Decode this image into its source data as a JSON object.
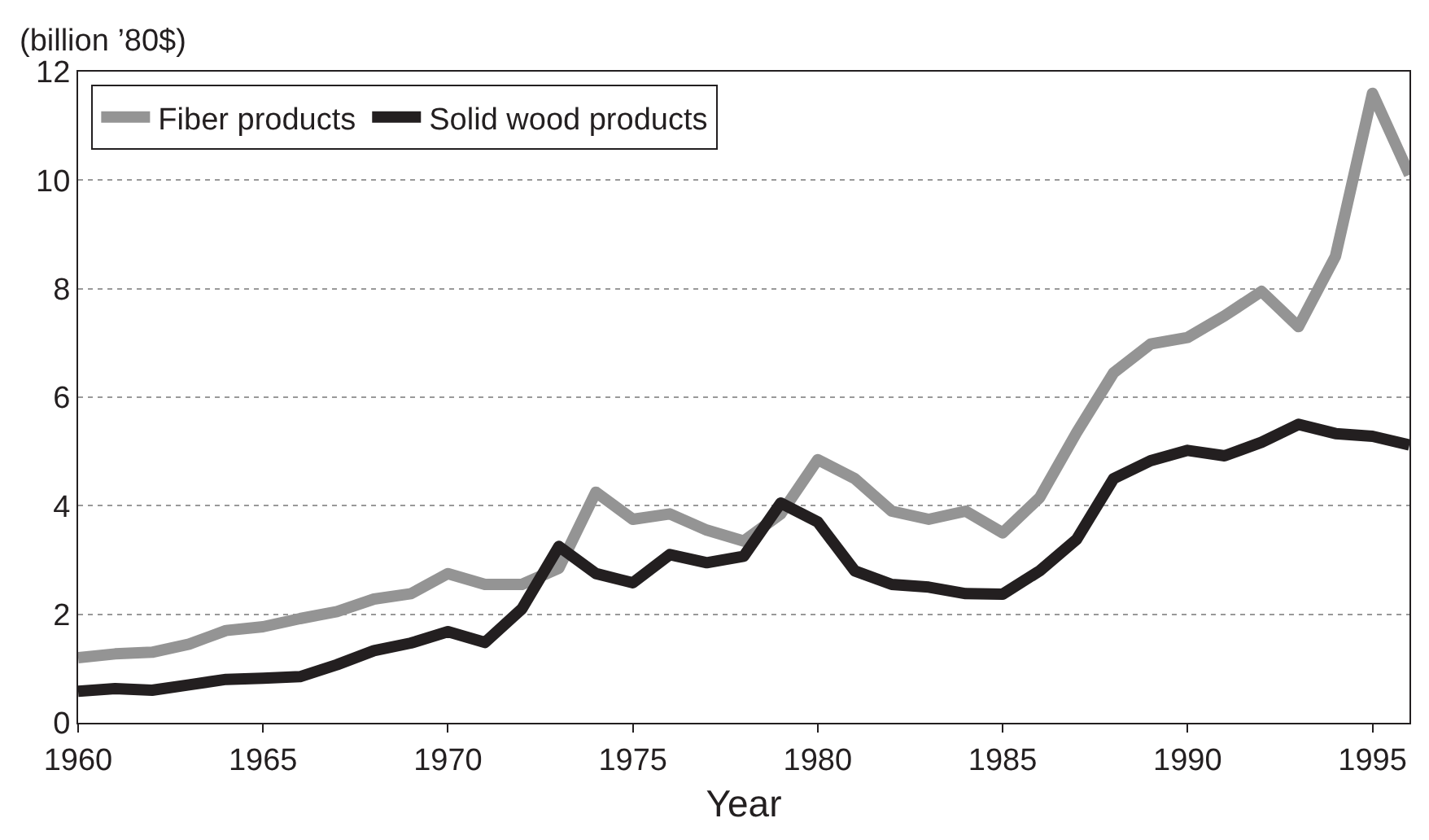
{
  "chart_data": {
    "type": "line",
    "xlabel": "Year",
    "ylabel": "(billion ’80$)",
    "x": [
      1960,
      1961,
      1962,
      1963,
      1964,
      1965,
      1966,
      1967,
      1968,
      1969,
      1970,
      1971,
      1972,
      1973,
      1974,
      1975,
      1976,
      1977,
      1978,
      1979,
      1980,
      1981,
      1982,
      1983,
      1984,
      1985,
      1986,
      1987,
      1988,
      1989,
      1990,
      1991,
      1992,
      1993,
      1994,
      1995,
      1996
    ],
    "series": [
      {
        "name": "Fiber products",
        "color": "#949494",
        "values": [
          1.2,
          1.27,
          1.3,
          1.45,
          1.7,
          1.77,
          1.92,
          2.05,
          2.28,
          2.38,
          2.75,
          2.55,
          2.55,
          2.85,
          4.25,
          3.75,
          3.85,
          3.55,
          3.35,
          3.85,
          4.85,
          4.5,
          3.9,
          3.75,
          3.9,
          3.5,
          4.15,
          5.35,
          6.45,
          6.98,
          7.1,
          7.5,
          7.95,
          7.3,
          8.6,
          11.6,
          10.1
        ]
      },
      {
        "name": "Solid wood products",
        "color": "#231f20",
        "values": [
          0.58,
          0.63,
          0.6,
          0.7,
          0.8,
          0.82,
          0.85,
          1.07,
          1.33,
          1.47,
          1.68,
          1.48,
          2.1,
          3.25,
          2.75,
          2.58,
          3.1,
          2.95,
          3.07,
          4.05,
          3.7,
          2.8,
          2.55,
          2.5,
          2.38,
          2.37,
          2.8,
          3.38,
          4.5,
          4.83,
          5.02,
          4.92,
          5.17,
          5.5,
          5.33,
          5.28,
          5.12
        ]
      }
    ],
    "xlim": [
      1960,
      1996
    ],
    "xticks": [
      1960,
      1965,
      1970,
      1975,
      1980,
      1985,
      1990,
      1995
    ],
    "ylim": [
      0,
      12
    ],
    "yticks": [
      0,
      2,
      4,
      6,
      8,
      10,
      12
    ],
    "grid": "y",
    "legend": "top left",
    "line_style": "solid",
    "marker": "none"
  }
}
